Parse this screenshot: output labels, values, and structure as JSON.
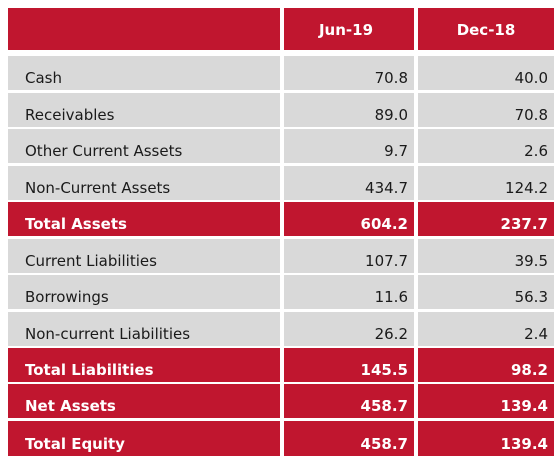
{
  "table": {
    "columns": [
      "",
      "Jun-19",
      "Dec-18"
    ],
    "rows": [
      {
        "label": "Cash",
        "jun19": "70.8",
        "dec18": "40.0",
        "total": false
      },
      {
        "label": "Receivables",
        "jun19": "89.0",
        "dec18": "70.8",
        "total": false
      },
      {
        "label": "Other Current Assets",
        "jun19": "9.7",
        "dec18": "2.6",
        "total": false
      },
      {
        "label": "Non-Current Assets",
        "jun19": "434.7",
        "dec18": "124.2",
        "total": false
      },
      {
        "label": "Total Assets",
        "jun19": "604.2",
        "dec18": "237.7",
        "total": true
      },
      {
        "label": "Current Liabilities",
        "jun19": "107.7",
        "dec18": "39.5",
        "total": false
      },
      {
        "label": "Borrowings",
        "jun19": "11.6",
        "dec18": "56.3",
        "total": false
      },
      {
        "label": "Non-current Liabilities",
        "jun19": "26.2",
        "dec18": "2.4",
        "total": false
      },
      {
        "label": "Total Liabilities",
        "jun19": "145.5",
        "dec18": "98.2",
        "total": true
      },
      {
        "label": "Net Assets",
        "jun19": "458.7",
        "dec18": "139.4",
        "total": true
      },
      {
        "label": "Total Equity",
        "jun19": "458.7",
        "dec18": "139.4",
        "total": true
      }
    ]
  },
  "colors": {
    "accent": "#c0162f",
    "row_fill": "#d9d9d9"
  }
}
